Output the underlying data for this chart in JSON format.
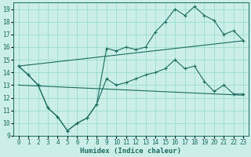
{
  "xlabel": "Humidex (Indice chaleur)",
  "bg_color": "#cceee8",
  "line_color": "#1a6b60",
  "grid_color": "#99ddcc",
  "xlim": [
    -0.5,
    23.5
  ],
  "ylim": [
    9,
    19.5
  ],
  "xticks": [
    0,
    1,
    2,
    3,
    4,
    5,
    6,
    7,
    8,
    9,
    10,
    11,
    12,
    13,
    14,
    15,
    16,
    17,
    18,
    19,
    20,
    21,
    22,
    23
  ],
  "yticks": [
    9,
    10,
    11,
    12,
    13,
    14,
    15,
    16,
    17,
    18,
    19
  ],
  "line1_x": [
    0,
    1,
    2,
    3,
    4,
    5,
    6,
    7,
    8,
    9,
    10,
    11,
    12,
    13,
    14,
    15,
    16,
    17,
    18,
    19,
    20,
    21,
    22,
    23
  ],
  "line1_y": [
    14.5,
    13.8,
    13.0,
    11.2,
    10.5,
    9.4,
    10.0,
    10.4,
    11.5,
    15.9,
    15.7,
    16.0,
    15.8,
    16.0,
    17.2,
    18.0,
    19.0,
    18.5,
    19.2,
    18.5,
    18.1,
    17.0,
    17.3,
    16.5
  ],
  "line2_x": [
    0,
    1,
    2,
    3,
    4,
    5,
    6,
    7,
    8,
    9,
    10,
    11,
    12,
    13,
    14,
    15,
    16,
    17,
    18,
    19,
    20,
    21,
    22,
    23
  ],
  "line2_y": [
    14.5,
    13.8,
    13.0,
    11.2,
    10.5,
    9.4,
    10.0,
    10.4,
    11.5,
    13.5,
    13.0,
    13.2,
    13.5,
    13.8,
    14.0,
    14.3,
    15.0,
    14.3,
    14.5,
    13.3,
    12.5,
    13.0,
    12.3,
    12.3
  ],
  "line3_x": [
    0,
    23
  ],
  "line3_y": [
    14.5,
    16.5
  ],
  "line4_x": [
    0,
    23
  ],
  "line4_y": [
    13.0,
    12.2
  ],
  "xlabel_fontsize": 6.5,
  "tick_fontsize": 5.5
}
